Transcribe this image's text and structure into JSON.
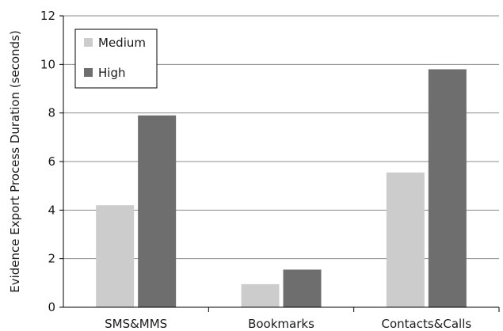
{
  "chart_data": {
    "type": "bar",
    "categories": [
      "SMS&MMS",
      "Bookmarks",
      "Contacts&Calls"
    ],
    "series": [
      {
        "name": "Medium",
        "values": [
          4.2,
          0.95,
          5.55
        ],
        "color": "#cccccc"
      },
      {
        "name": "High",
        "values": [
          7.9,
          1.55,
          9.8
        ],
        "color": "#6e6e6e"
      }
    ],
    "xlabel": "",
    "ylabel": "Evidence Export Process Duration  (seconds)",
    "ylim": [
      0,
      12
    ],
    "yticks": [
      0,
      2,
      4,
      6,
      8,
      10,
      12
    ],
    "grid": true,
    "legend_position": "top-left"
  }
}
